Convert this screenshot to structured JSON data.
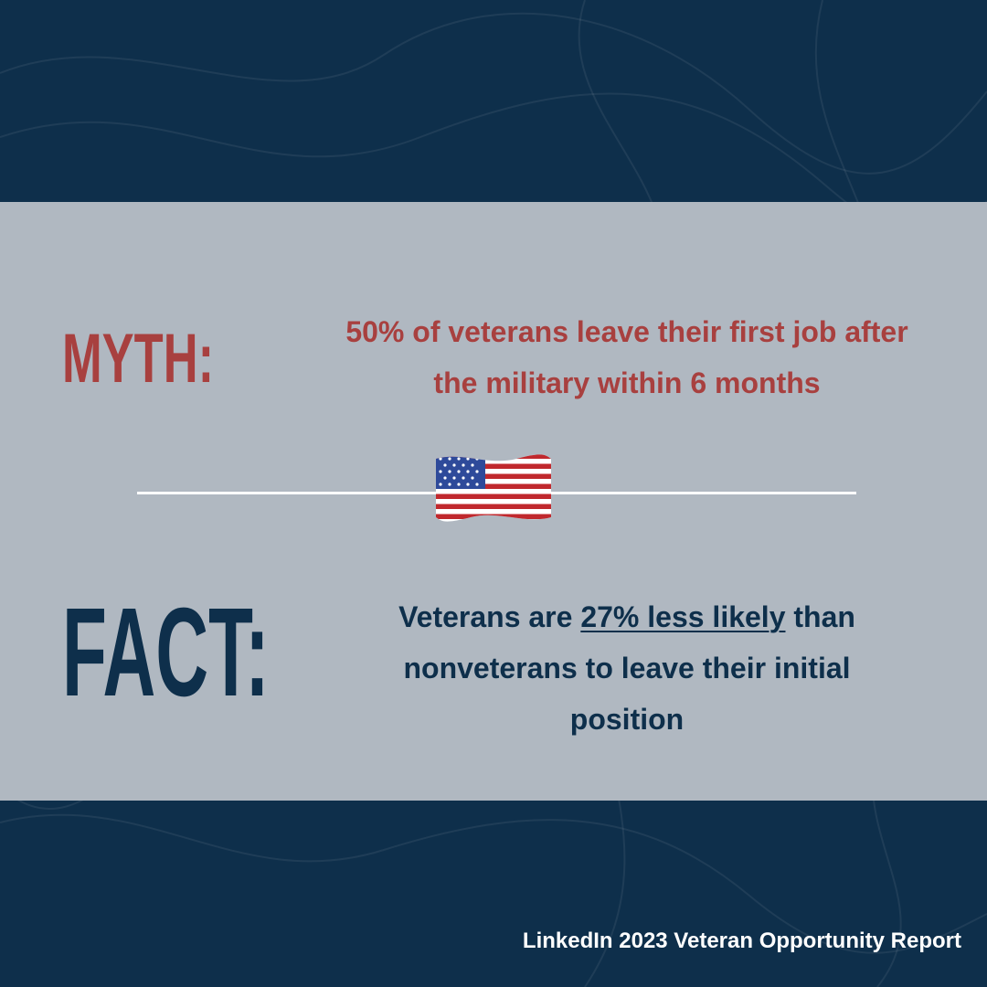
{
  "myth": {
    "label": "MYTH:",
    "text": "50% of veterans leave their first job after the military within 6 months"
  },
  "fact": {
    "label": "FACT:",
    "text_start": "Veterans are ",
    "highlight": "27% less likely",
    "text_end": " than nonveterans to leave their initial position"
  },
  "source": "LinkedIn 2023 Veteran Opportunity Report"
}
